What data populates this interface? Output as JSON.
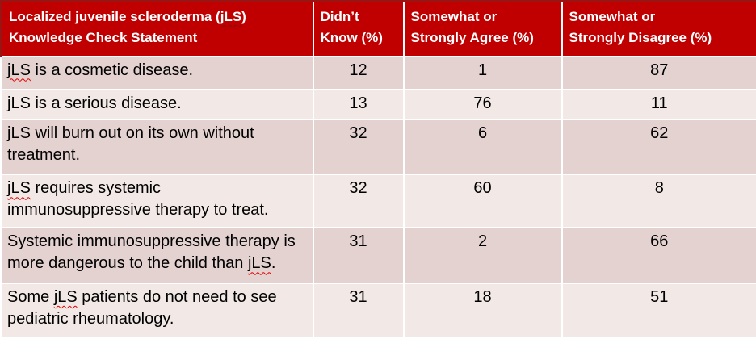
{
  "theme": {
    "header_bg": "#C00000",
    "header_border": "#9A1414",
    "header_text": "#FFFFFF",
    "row_dark_bg": "#E4D2D0",
    "row_light_bg": "#F2E9E6",
    "grid_color": "#FFFFFF",
    "body_text": "#000000",
    "squiggle_red": "#E00000",
    "squiggle_dark": "#7E1010"
  },
  "table": {
    "header": [
      {
        "key": "statement",
        "segments": [
          {
            "text": "Localized juvenile scleroderma ("
          },
          {
            "text": "jLS",
            "squiggle": true
          },
          {
            "text": ")\nKnowledge Check Statement"
          }
        ]
      },
      {
        "key": "didnt-know",
        "segments": [
          {
            "text": "Didn’t\nKnow (%)"
          }
        ]
      },
      {
        "key": "agree",
        "segments": [
          {
            "text": "Somewhat or\nStrongly Agree (%)"
          }
        ]
      },
      {
        "key": "disagree",
        "segments": [
          {
            "text": "Somewhat or\nStrongly Disagree (%)"
          }
        ]
      }
    ],
    "value_keys": [
      "didnt-know",
      "agree",
      "disagree"
    ],
    "rows": [
      {
        "statement": [
          {
            "text": "jLS",
            "squiggle": true
          },
          {
            "text": " is a cosmetic disease."
          }
        ],
        "values": [
          "12",
          "1",
          "87"
        ]
      },
      {
        "statement": [
          {
            "text": "jLS is a serious disease."
          }
        ],
        "values": [
          "13",
          "76",
          "11"
        ]
      },
      {
        "statement": [
          {
            "text": "jLS will burn out on its own without\ntreatment."
          }
        ],
        "values": [
          "32",
          "6",
          "62"
        ]
      },
      {
        "statement": [
          {
            "text": "jLS",
            "squiggle": true
          },
          {
            "text": " requires systemic\nimmunosuppressive therapy to treat."
          }
        ],
        "values": [
          "32",
          "60",
          "8"
        ]
      },
      {
        "statement": [
          {
            "text": "Systemic immunosuppressive therapy is\nmore dangerous to the child than "
          },
          {
            "text": "jLS",
            "squiggle": true
          },
          {
            "text": "."
          }
        ],
        "values": [
          "31",
          "2",
          "66"
        ]
      },
      {
        "statement": [
          {
            "text": "Some "
          },
          {
            "text": "jLS",
            "squiggle": true
          },
          {
            "text": " patients do not need to see\npediatric rheumatology."
          }
        ],
        "values": [
          "31",
          "18",
          "51"
        ]
      }
    ]
  }
}
